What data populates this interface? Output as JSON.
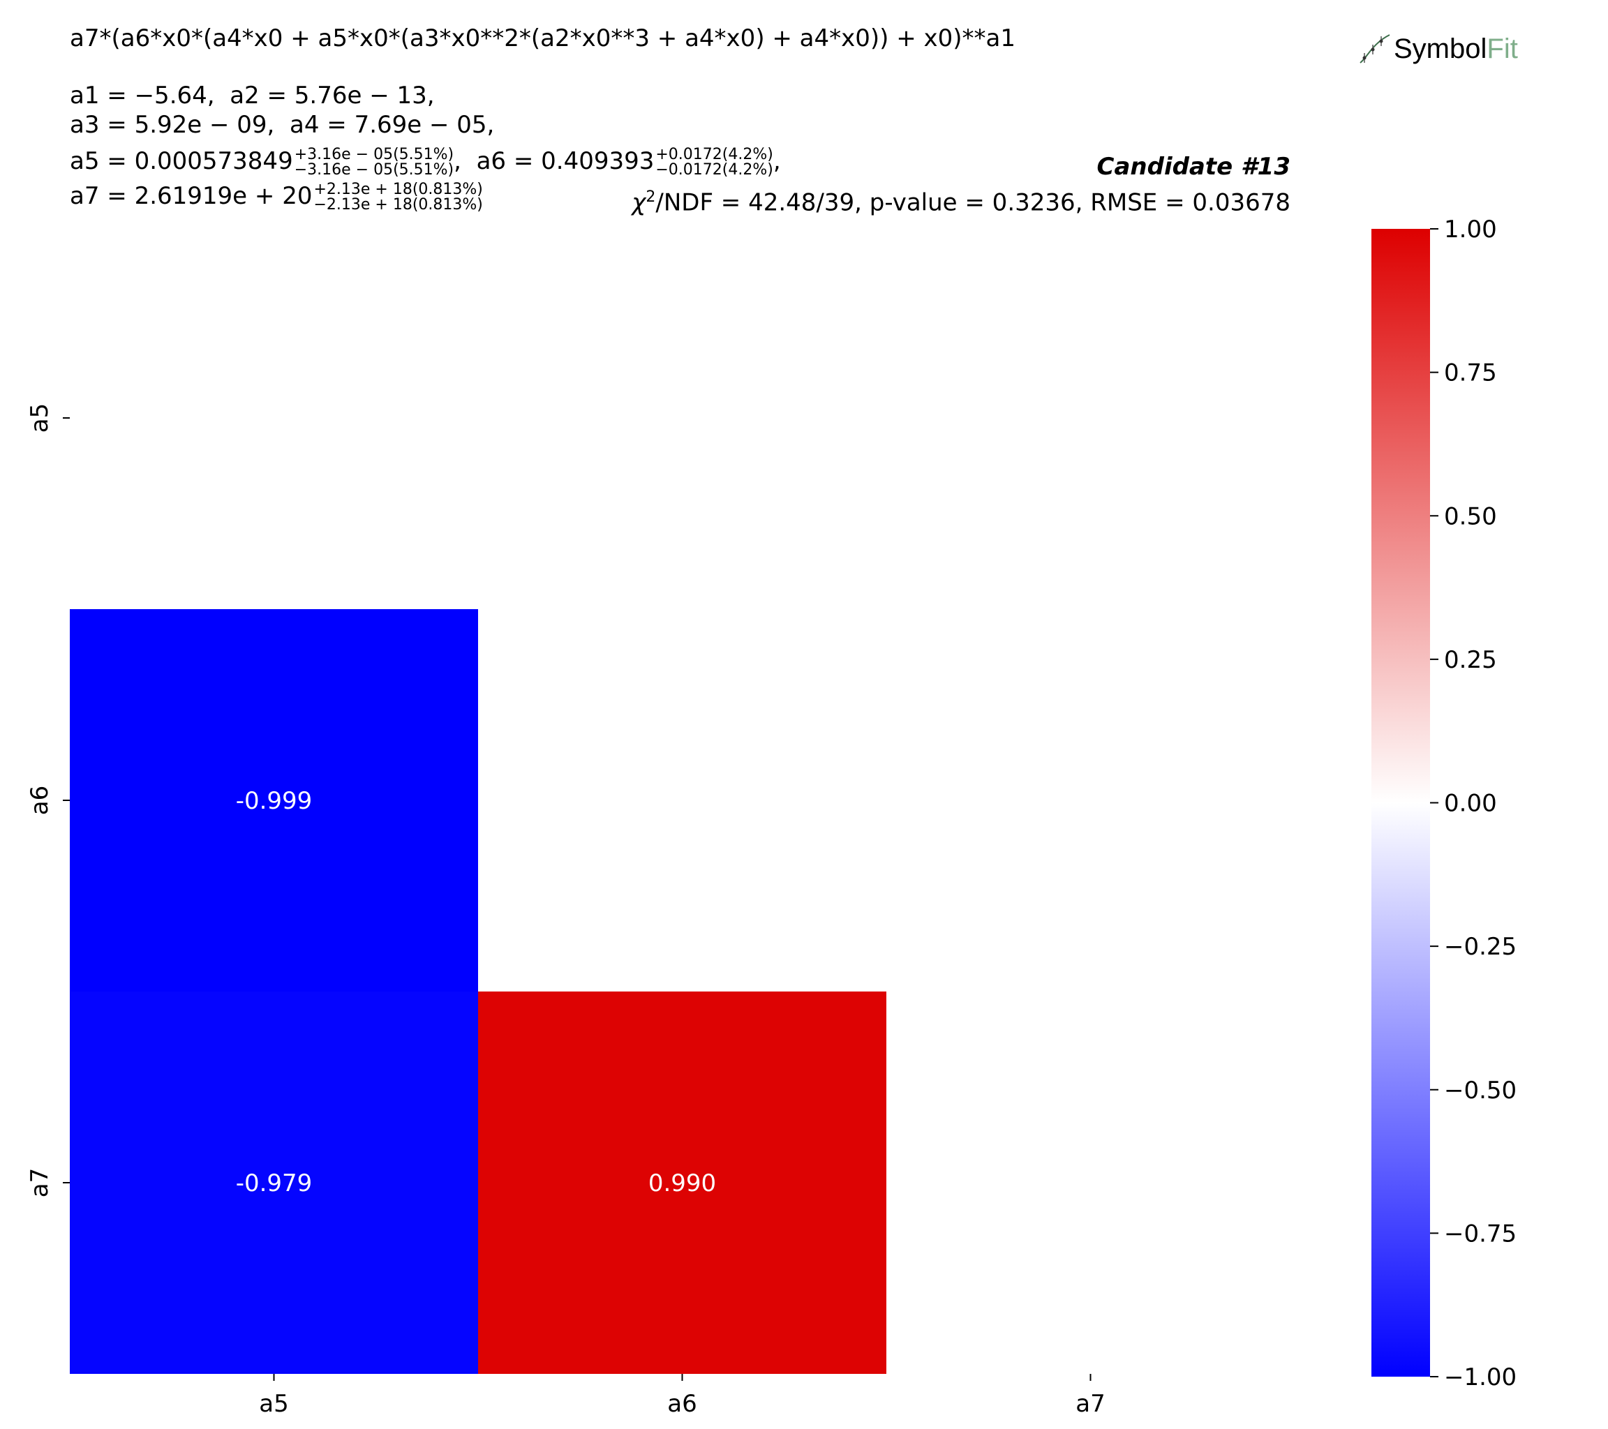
{
  "formula": "a7*(a6*x0*(a4*x0 + a5*x0*(a3*x0**2*(a2*x0**3 + a4*x0) + a4*x0)) + x0)**a1",
  "params": {
    "a1": "a1 = −5.64,",
    "a2": "a2 = 5.76e − 13,",
    "a3": "a3 = 5.92e − 09,",
    "a4": "a4 = 7.69e − 05,",
    "a5_value": "a5 = 0.000573849",
    "a5_up": "+3.16e − 05(5.51%)",
    "a5_down": "−3.16e − 05(5.51%)",
    "a6_value": "a6 = 0.409393",
    "a6_up": "+0.0172(4.2%)",
    "a6_down": "−0.0172(4.2%)",
    "a7_value": "a7 = 2.61919e + 20",
    "a7_up": "+2.13e + 18(0.813%)",
    "a7_down": "−2.13e + 18(0.813%)"
  },
  "candidate": "Candidate #13",
  "stats": "/NDF = 42.48/39, p-value = 0.3236, RMSE = 0.03678",
  "chi_symbol": "χ",
  "chi_exp": "2",
  "logo": {
    "text_a": "Symbol",
    "text_b": "Fit",
    "icon": "curve-fit-icon"
  },
  "colors": {
    "negative": "#0000ff",
    "neutral": "#ffffff",
    "positive": "#dd0000"
  },
  "chart_data": {
    "type": "heatmap",
    "labels": [
      "a5",
      "a6",
      "a7"
    ],
    "x_tick_labels": [
      "a5",
      "a6",
      "a7"
    ],
    "y_tick_labels": [
      "a5",
      "a6",
      "a7"
    ],
    "cells": [
      {
        "row": "a6",
        "col": "a5",
        "value": -0.999,
        "label": "-0.999"
      },
      {
        "row": "a7",
        "col": "a5",
        "value": -0.979,
        "label": "-0.979"
      },
      {
        "row": "a7",
        "col": "a6",
        "value": 0.99,
        "label": "0.990"
      }
    ],
    "mask": "lower-triangle (upper triangle and diagonal empty)",
    "colorbar": {
      "range": [
        -1.0,
        1.0
      ],
      "ticks": [
        1.0,
        0.75,
        0.5,
        0.25,
        0.0,
        -0.25,
        -0.5,
        -0.75,
        -1.0
      ],
      "tick_labels": [
        "1.00",
        "0.75",
        "0.50",
        "0.25",
        "0.00",
        "−0.25",
        "−0.50",
        "−0.75",
        "−1.00"
      ],
      "colormap": "bwr"
    }
  }
}
